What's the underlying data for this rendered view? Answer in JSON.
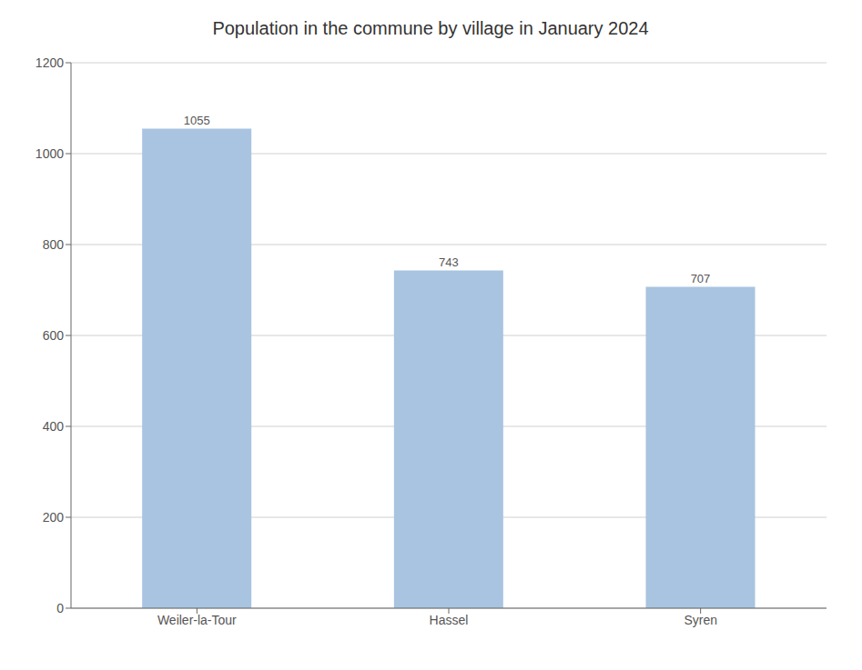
{
  "chart_data": {
    "type": "bar",
    "title": "Population in the commune by village in January 2024",
    "categories": [
      "Weiler-la-Tour",
      "Hassel",
      "Syren"
    ],
    "values": [
      1055,
      743,
      707
    ],
    "color": "#a8c4e0",
    "ylim": [
      0,
      1200
    ],
    "yticks": [
      0,
      200,
      400,
      600,
      800,
      1000,
      1200
    ],
    "grid": true,
    "data_labels": true
  }
}
